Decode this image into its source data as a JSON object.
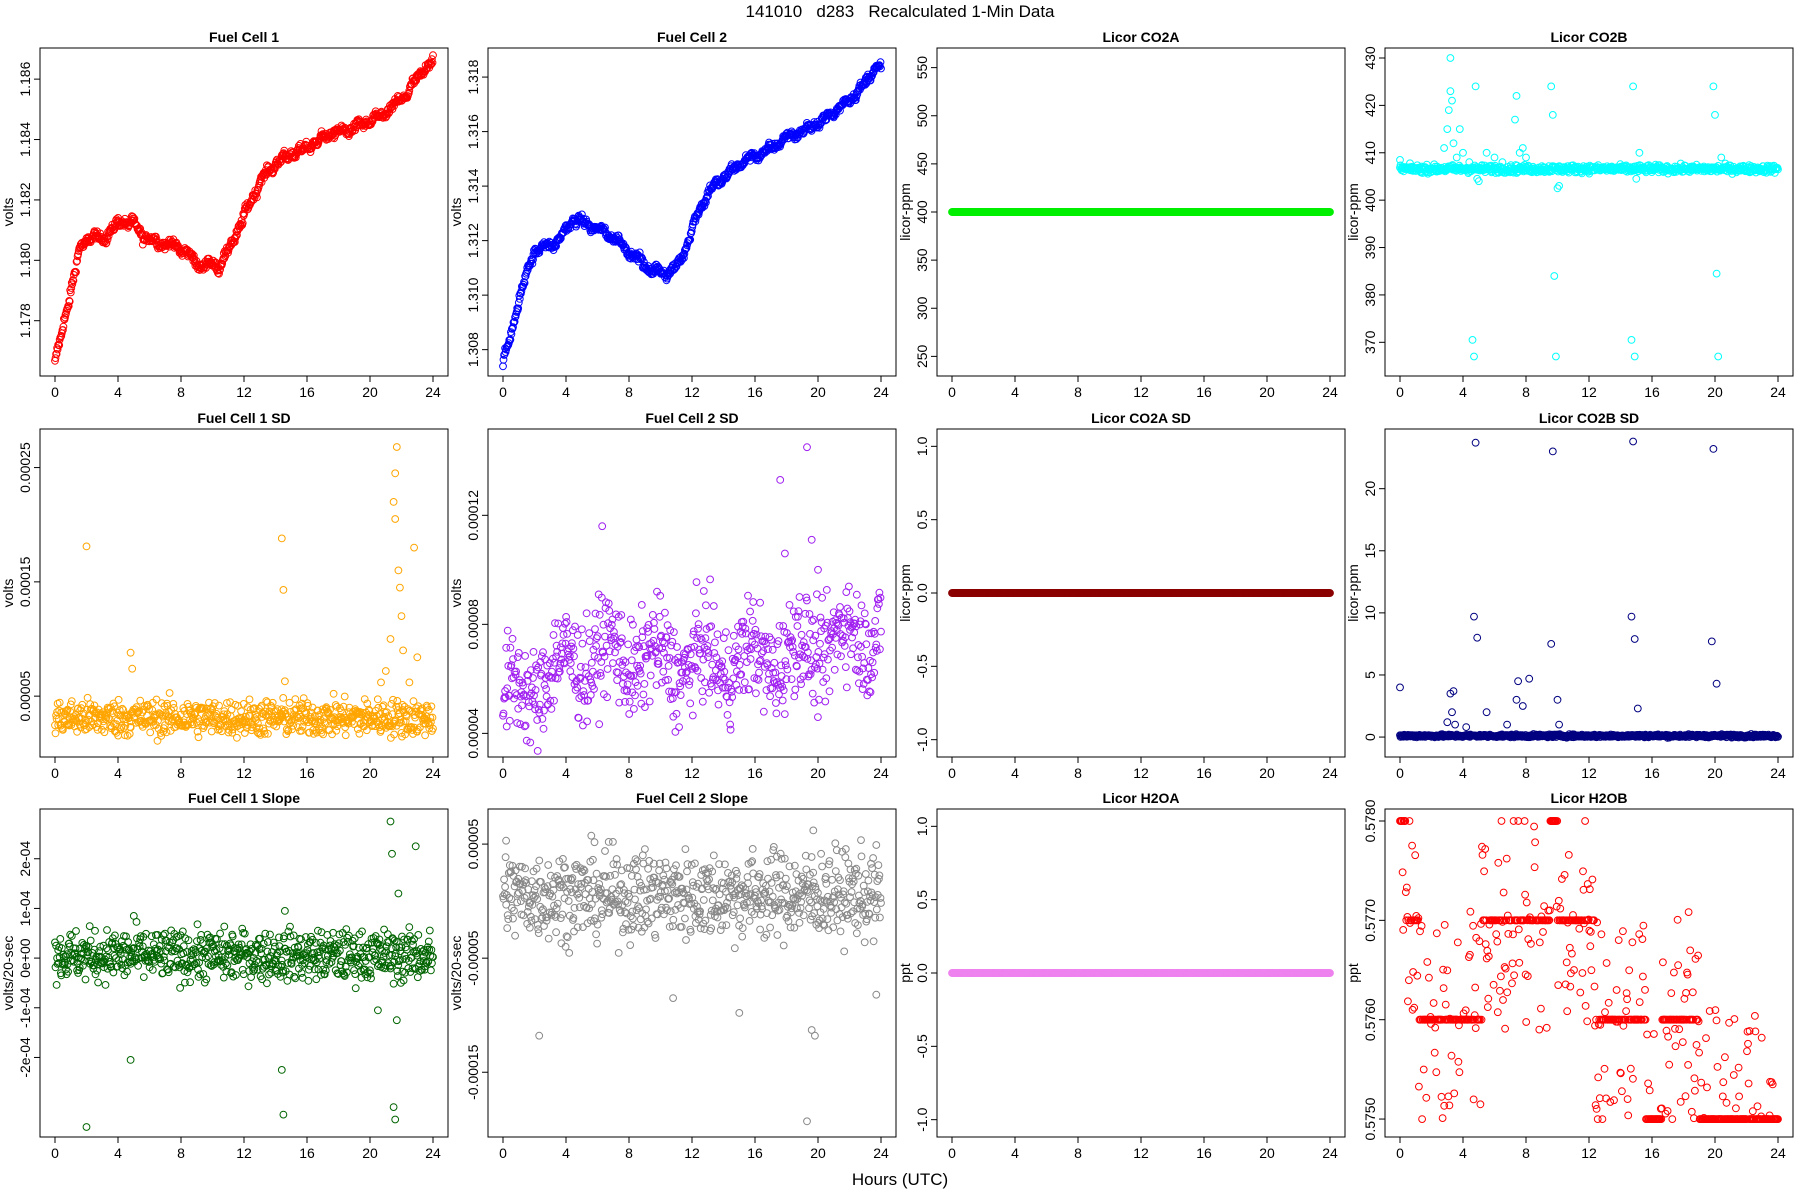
{
  "figure": {
    "title": "141010   d283   Recalculated 1-Min Data",
    "x_axis_label": "Hours (UTC)"
  },
  "chart_data": [
    {
      "id": "fc1",
      "type": "scatter",
      "title": "Fuel Cell 1",
      "xlabel": "",
      "ylabel": "volts",
      "color": "#ff0000",
      "xlim": [
        0,
        24
      ],
      "ylim": [
        1.1765,
        1.1867
      ],
      "xticks": [
        "0",
        "4",
        "8",
        "12",
        "16",
        "20",
        "24"
      ],
      "yticks": [
        "1.178",
        "1.180",
        "1.182",
        "1.184",
        "1.186"
      ],
      "pattern": "curve",
      "curve": [
        [
          0,
          1.1766
        ],
        [
          0.4,
          1.1775
        ],
        [
          1,
          1.179
        ],
        [
          1.6,
          1.1804
        ],
        [
          2.2,
          1.1808
        ],
        [
          3,
          1.1807
        ],
        [
          3.6,
          1.181
        ],
        [
          4.2,
          1.1813
        ],
        [
          5,
          1.1812
        ],
        [
          5.6,
          1.1808
        ],
        [
          6.5,
          1.1806
        ],
        [
          7.5,
          1.1805
        ],
        [
          8.3,
          1.1803
        ],
        [
          9.2,
          1.1798
        ],
        [
          9.8,
          1.1799
        ],
        [
          10.4,
          1.1798
        ],
        [
          11,
          1.1803
        ],
        [
          11.6,
          1.181
        ],
        [
          12.3,
          1.1818
        ],
        [
          13,
          1.1826
        ],
        [
          13.8,
          1.1831
        ],
        [
          14.5,
          1.1834
        ],
        [
          15.5,
          1.1836
        ],
        [
          16.5,
          1.1839
        ],
        [
          17.5,
          1.1842
        ],
        [
          18.5,
          1.1843
        ],
        [
          19.5,
          1.1845
        ],
        [
          20.5,
          1.1847
        ],
        [
          21.5,
          1.1851
        ],
        [
          22.3,
          1.1855
        ],
        [
          23,
          1.186
        ],
        [
          23.5,
          1.1864
        ],
        [
          24,
          1.1866
        ]
      ],
      "spread": 0.00014
    },
    {
      "id": "fc2",
      "type": "scatter",
      "title": "Fuel Cell 2",
      "xlabel": "",
      "ylabel": "volts",
      "color": "#0000ff",
      "xlim": [
        0,
        24
      ],
      "ylim": [
        1.3074,
        1.3187
      ],
      "xticks": [
        "0",
        "4",
        "8",
        "12",
        "16",
        "20",
        "24"
      ],
      "yticks": [
        "1.308",
        "1.310",
        "1.312",
        "1.314",
        "1.316",
        "1.318"
      ],
      "pattern": "curve",
      "curve": [
        [
          0,
          1.3075
        ],
        [
          0.5,
          1.3085
        ],
        [
          1,
          1.3098
        ],
        [
          1.5,
          1.3108
        ],
        [
          2,
          1.3116
        ],
        [
          2.5,
          1.3118
        ],
        [
          3,
          1.3118
        ],
        [
          3.5,
          1.312
        ],
        [
          4,
          1.3124
        ],
        [
          4.5,
          1.3128
        ],
        [
          5,
          1.3127
        ],
        [
          5.7,
          1.3125
        ],
        [
          6.5,
          1.3123
        ],
        [
          7.3,
          1.312
        ],
        [
          8,
          1.3116
        ],
        [
          8.7,
          1.3113
        ],
        [
          9.3,
          1.3109
        ],
        [
          9.8,
          1.3109
        ],
        [
          10.4,
          1.3108
        ],
        [
          11,
          1.311
        ],
        [
          11.5,
          1.3116
        ],
        [
          12,
          1.3124
        ],
        [
          12.5,
          1.3132
        ],
        [
          13.2,
          1.3139
        ],
        [
          14,
          1.3143
        ],
        [
          14.8,
          1.3147
        ],
        [
          15.5,
          1.315
        ],
        [
          16.5,
          1.3152
        ],
        [
          17.3,
          1.3155
        ],
        [
          18,
          1.3158
        ],
        [
          19,
          1.316
        ],
        [
          20,
          1.3163
        ],
        [
          21,
          1.3167
        ],
        [
          22,
          1.3172
        ],
        [
          22.8,
          1.3176
        ],
        [
          23.4,
          1.3182
        ],
        [
          24,
          1.3184
        ]
      ],
      "spread": 0.00014
    },
    {
      "id": "co2a",
      "type": "scatter",
      "title": "Licor CO2A",
      "xlabel": "",
      "ylabel": "licor-ppm",
      "color": "#00ee00",
      "xlim": [
        0,
        24
      ],
      "ylim": [
        240,
        560
      ],
      "xticks": [
        "0",
        "4",
        "8",
        "12",
        "16",
        "20",
        "24"
      ],
      "yticks": [
        "250",
        "300",
        "350",
        "400",
        "450",
        "500",
        "550"
      ],
      "pattern": "constant",
      "value": 400
    },
    {
      "id": "co2b",
      "type": "scatter",
      "title": "Licor CO2B",
      "xlabel": "",
      "ylabel": "licor-ppm",
      "color": "#00ffff",
      "xlim": [
        0,
        24
      ],
      "ylim": [
        365,
        430
      ],
      "xticks": [
        "0",
        "4",
        "8",
        "12",
        "16",
        "20",
        "24"
      ],
      "yticks": [
        "370",
        "380",
        "390",
        "400",
        "410",
        "420",
        "430"
      ],
      "pattern": "noisy",
      "base": 406.6,
      "noise": 0.4,
      "spikes": [
        [
          0,
          408.5
        ],
        [
          2.8,
          411
        ],
        [
          3,
          415
        ],
        [
          3.1,
          419
        ],
        [
          3.2,
          423
        ],
        [
          3.3,
          421
        ],
        [
          3.4,
          412
        ],
        [
          3.2,
          430
        ],
        [
          3.6,
          409
        ],
        [
          3.8,
          415
        ],
        [
          4,
          410
        ],
        [
          4.4,
          408
        ],
        [
          4.8,
          424
        ],
        [
          4.6,
          370.5
        ],
        [
          4.7,
          367
        ],
        [
          4.9,
          404.5
        ],
        [
          5,
          404
        ],
        [
          5.5,
          410
        ],
        [
          6,
          409
        ],
        [
          6.5,
          408
        ],
        [
          7.3,
          417
        ],
        [
          7.4,
          422
        ],
        [
          7.6,
          410
        ],
        [
          7.8,
          411
        ],
        [
          8,
          409
        ],
        [
          9.6,
          424
        ],
        [
          9.7,
          418
        ],
        [
          9.8,
          384
        ],
        [
          9.9,
          367
        ],
        [
          10,
          402.5
        ],
        [
          10.1,
          403
        ],
        [
          14.7,
          370.5
        ],
        [
          14.8,
          424
        ],
        [
          14.9,
          367
        ],
        [
          15,
          404.5
        ],
        [
          15.2,
          410
        ],
        [
          19.9,
          424
        ],
        [
          20,
          418
        ],
        [
          20.1,
          384.5
        ],
        [
          20.2,
          367
        ],
        [
          20.4,
          409
        ]
      ]
    },
    {
      "id": "fc1sd",
      "type": "scatter",
      "title": "Fuel Cell 1 SD",
      "xlabel": "",
      "ylabel": "volts",
      "color": "#ffa500",
      "xlim": [
        0,
        24
      ],
      "ylim": [
        5.5e-06,
        0.000275
      ],
      "xticks": [
        "0",
        "4",
        "8",
        "12",
        "16",
        "20",
        "24"
      ],
      "yticks": [
        "0.00005",
        "0.00015",
        "0.00025"
      ],
      "pattern": "noisy",
      "base": 3.1e-05,
      "noise": 8e-06,
      "spikes": [
        [
          2,
          0.000181
        ],
        [
          4.8,
          8.8e-05
        ],
        [
          4.9,
          7.4e-05
        ],
        [
          14.4,
          0.000188
        ],
        [
          14.5,
          0.000143
        ],
        [
          14.6,
          6.3e-05
        ],
        [
          20.7,
          6.2e-05
        ],
        [
          21,
          7.2e-05
        ],
        [
          21.3,
          0.0001
        ],
        [
          21.5,
          0.00022
        ],
        [
          21.6,
          0.000245
        ],
        [
          21.7,
          0.000268
        ],
        [
          21.6,
          0.000205
        ],
        [
          21.8,
          0.00016
        ],
        [
          21.9,
          0.000145
        ],
        [
          22.0,
          0.00012
        ],
        [
          22.1,
          9e-05
        ],
        [
          22.8,
          0.00018
        ],
        [
          23,
          8.4e-05
        ],
        [
          22.5,
          6.2e-05
        ]
      ]
    },
    {
      "id": "fc2sd",
      "type": "scatter",
      "title": "Fuel Cell 2 SD",
      "xlabel": "",
      "ylabel": "volts",
      "color": "#a020f0",
      "xlim": [
        0,
        24
      ],
      "ylim": [
        3.5e-05,
        0.000148
      ],
      "xticks": [
        "0",
        "4",
        "8",
        "12",
        "16",
        "20",
        "24"
      ],
      "yticks": [
        "0.00004",
        "0.00008",
        "0.00012"
      ],
      "pattern": "band",
      "band": [
        [
          0,
          5.5e-05
        ],
        [
          1,
          5.2e-05
        ],
        [
          3,
          6.3e-05
        ],
        [
          6,
          6.9e-05
        ],
        [
          10,
          6.6e-05
        ],
        [
          14,
          6.6e-05
        ],
        [
          18,
          6.8e-05
        ],
        [
          21,
          7.4e-05
        ],
        [
          24,
          7.8e-05
        ]
      ],
      "noise": 1e-05,
      "spikes": [
        [
          6.3,
          0.000116
        ],
        [
          17.6,
          0.000133
        ],
        [
          19.3,
          0.000145
        ],
        [
          19.6,
          0.000111
        ],
        [
          20,
          0.0001
        ],
        [
          17.9,
          0.000106
        ]
      ]
    },
    {
      "id": "co2asd",
      "type": "scatter",
      "title": "Licor CO2A SD",
      "xlabel": "",
      "ylabel": "licor-ppm",
      "color": "#8b0000",
      "xlim": [
        0,
        24
      ],
      "ylim": [
        -1.05,
        1.05
      ],
      "xticks": [
        "0",
        "4",
        "8",
        "12",
        "16",
        "20",
        "24"
      ],
      "yticks": [
        "-1.0",
        "-0.5",
        "0.0",
        "0.5",
        "1.0"
      ],
      "pattern": "constant",
      "value": 0
    },
    {
      "id": "co2bsd",
      "type": "scatter",
      "title": "Licor CO2B SD",
      "xlabel": "",
      "ylabel": "licor-ppm",
      "color": "#000080",
      "xlim": [
        0,
        24
      ],
      "ylim": [
        -0.8,
        24
      ],
      "xticks": [
        "0",
        "4",
        "8",
        "12",
        "16",
        "20",
        "24"
      ],
      "yticks": [
        "0",
        "5",
        "10",
        "15",
        "20"
      ],
      "pattern": "noisy",
      "base": 0.1,
      "noise": 0.06,
      "spikes": [
        [
          0,
          4
        ],
        [
          3,
          1.2
        ],
        [
          3.2,
          3.5
        ],
        [
          3.3,
          2
        ],
        [
          3.4,
          3.7
        ],
        [
          3.5,
          1
        ],
        [
          4.2,
          0.8
        ],
        [
          4.8,
          23.7
        ],
        [
          4.7,
          9.7
        ],
        [
          4.9,
          8
        ],
        [
          5.5,
          2
        ],
        [
          6.8,
          1
        ],
        [
          7.5,
          4.5
        ],
        [
          7.8,
          2.5
        ],
        [
          8.2,
          4.7
        ],
        [
          7.4,
          3
        ],
        [
          9.7,
          23
        ],
        [
          9.6,
          7.5
        ],
        [
          10,
          3
        ],
        [
          10.1,
          1
        ],
        [
          14.8,
          23.8
        ],
        [
          14.7,
          9.7
        ],
        [
          14.9,
          7.9
        ],
        [
          15.1,
          2.3
        ],
        [
          19.9,
          23.2
        ],
        [
          19.8,
          7.7
        ],
        [
          20.1,
          4.3
        ]
      ]
    },
    {
      "id": "fc1slope",
      "type": "scatter",
      "title": "Fuel Cell 1 Slope",
      "xlabel": "",
      "ylabel": "volts/20-sec",
      "color": "#006400",
      "xlim": [
        0,
        24
      ],
      "ylim": [
        -0.00034,
        0.00028
      ],
      "xticks": [
        "0",
        "4",
        "8",
        "12",
        "16",
        "20",
        "24"
      ],
      "yticks": [
        "-2e-04",
        "-1e-04",
        "0e+00",
        "1e-04",
        "2e-04"
      ],
      "pattern": "noisy",
      "base": 5e-06,
      "noise": 2.5e-05,
      "spikes": [
        [
          2,
          -0.00034
        ],
        [
          4.8,
          -0.000205
        ],
        [
          5,
          8.5e-05
        ],
        [
          14.4,
          -0.000225
        ],
        [
          14.5,
          -0.000315
        ],
        [
          14.6,
          9.5e-05
        ],
        [
          21.3,
          0.000275
        ],
        [
          21.4,
          0.00021
        ],
        [
          21.5,
          -0.0003
        ],
        [
          21.6,
          -0.000325
        ],
        [
          21.7,
          -0.000125
        ],
        [
          21.8,
          0.00013
        ],
        [
          22.9,
          0.000225
        ],
        [
          20.5,
          -0.000105
        ]
      ]
    },
    {
      "id": "fc2slope",
      "type": "scatter",
      "title": "Fuel Cell 2 Slope",
      "xlabel": "",
      "ylabel": "volts/20-sec",
      "color": "#888888",
      "xlim": [
        0,
        24
      ],
      "ylim": [
        -0.000198,
        7.2e-05
      ],
      "xticks": [
        "0",
        "4",
        "8",
        "12",
        "16",
        "20",
        "24"
      ],
      "yticks": [
        "-0.00015",
        "-0.00005",
        "0.00005"
      ],
      "pattern": "noisy",
      "base": 5.5e-06,
      "noise": 1.9e-05,
      "spikes": [
        [
          2.3,
          -0.000118
        ],
        [
          10.8,
          -8.5e-05
        ],
        [
          15,
          -9.8e-05
        ],
        [
          19.3,
          -0.000193
        ],
        [
          19.6,
          -0.000113
        ],
        [
          19.8,
          -0.000118
        ],
        [
          19.7,
          6.2e-05
        ],
        [
          0.2,
          5.3e-05
        ],
        [
          23.7,
          -8.2e-05
        ]
      ]
    },
    {
      "id": "h2oa",
      "type": "scatter",
      "title": "Licor H2OA",
      "xlabel": "",
      "ylabel": "ppt",
      "color": "#ee82ee",
      "xlim": [
        0,
        24
      ],
      "ylim": [
        -1.05,
        1.05
      ],
      "xticks": [
        "0",
        "4",
        "8",
        "12",
        "16",
        "20",
        "24"
      ],
      "yticks": [
        "-1.0",
        "-0.5",
        "0.0",
        "0.5",
        "1.0"
      ],
      "pattern": "constant",
      "value": 0
    },
    {
      "id": "h2ob",
      "type": "scatter",
      "title": "Licor H2OB",
      "xlabel": "",
      "ylabel": "ppt",
      "color": "#ff0000",
      "xlim": [
        0,
        24
      ],
      "ylim": [
        0.57492,
        0.57802
      ],
      "xticks": [
        "0",
        "4",
        "8",
        "12",
        "16",
        "20",
        "24"
      ],
      "yticks": [
        "0.5750",
        "0.5760",
        "0.5770",
        "0.5780"
      ],
      "pattern": "levels",
      "levels": [
        [
          0,
          0.4,
          0.578
        ],
        [
          0.4,
          1.2,
          0.577
        ],
        [
          1.2,
          3.8,
          0.576
        ],
        [
          3.8,
          5.2,
          0.576
        ],
        [
          5.2,
          8.2,
          0.577
        ],
        [
          8.2,
          9.5,
          0.577
        ],
        [
          9.5,
          10,
          0.578
        ],
        [
          10,
          12.4,
          0.577
        ],
        [
          12.4,
          15.6,
          0.576
        ],
        [
          15.6,
          16.6,
          0.575
        ],
        [
          16.6,
          19,
          0.576
        ],
        [
          19,
          24,
          0.575
        ]
      ]
    }
  ]
}
